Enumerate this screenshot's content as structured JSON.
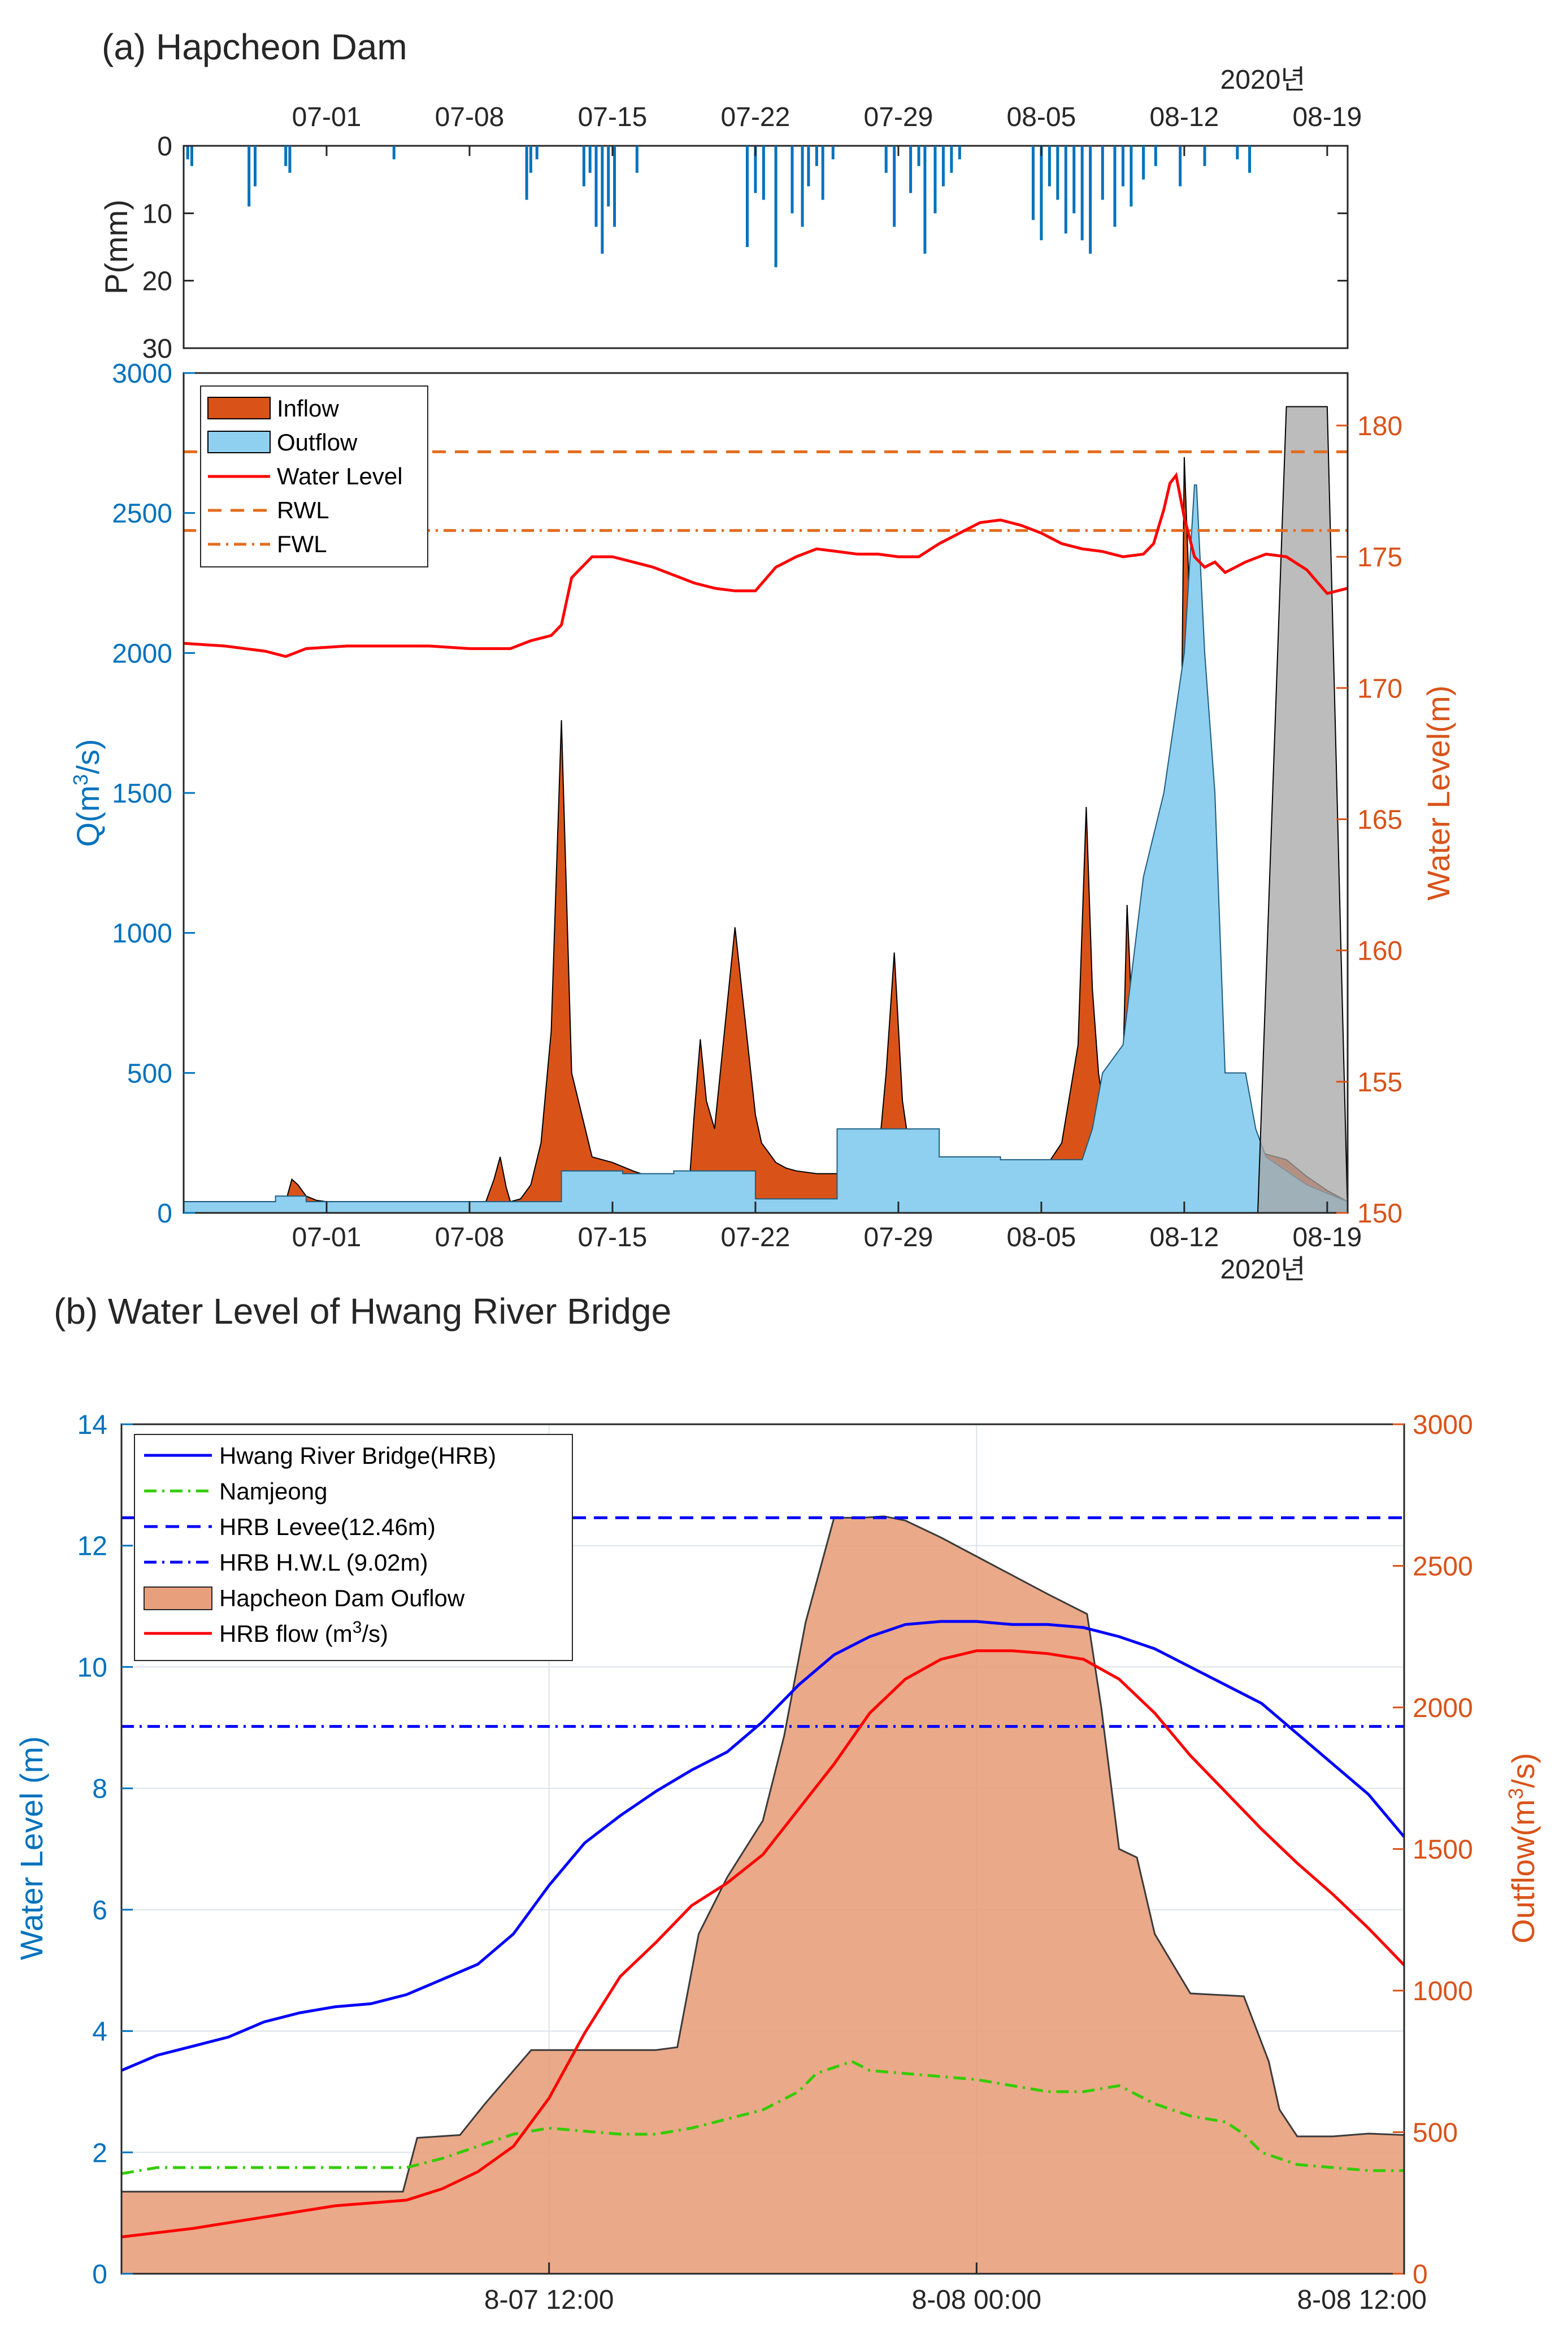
{
  "panel_a": {
    "title": "(a) Hapcheon Dam",
    "year_label_top": "2020년",
    "year_label_bottom": "2020년",
    "date_ticks": [
      "07-01",
      "07-08",
      "07-15",
      "07-22",
      "07-29",
      "08-05",
      "08-12",
      "08-19"
    ],
    "precip_ylabel": "P(mm)",
    "q_ylabel": "Q(m³/s)",
    "wl_ylabel": "Water Level(m)",
    "legend": [
      "Inflow",
      "Outflow",
      "Water Level",
      "RWL",
      "FWL"
    ],
    "colors": {
      "inflow": "#D95319",
      "outflow": "#8FD0F0",
      "water_level": "#FF0000",
      "rwl": "#E36C1E",
      "fwl": "#E36C1E",
      "precip": "#0072BD",
      "gray": "#A6A6A6"
    }
  },
  "panel_b": {
    "title": "(b) Water Level of Hwang River Bridge",
    "left_ylabel": "Water Level (m)",
    "right_ylabel": "Outflow(m³/s)",
    "legend": [
      "Hwang River Bridge(HRB)",
      "Namjeong",
      "HRB Levee(12.46m)",
      "HRB H.W.L (9.02m)",
      "Hapcheon Dam Ouflow",
      "HRB flow (m³/s)"
    ],
    "x_ticks": [
      "8-07 12:00",
      "8-08 00:00",
      "8-08 12:00"
    ],
    "colors": {
      "hrb": "#0000FF",
      "namjeong": "#33CC00",
      "levee": "#0000FF",
      "hwl": "#0000FF",
      "dam": "#E8A07C",
      "hrb_flow": "#FF0000"
    }
  },
  "chart_data": [
    {
      "type": "bar",
      "title": "(a) Hapcheon Dam",
      "ylabel": "P(mm)",
      "x_unit": "days since 2020-06-24",
      "ylim": [
        30,
        0
      ],
      "y_ticks": [
        0,
        10,
        20,
        30
      ],
      "x_ticks": [
        7,
        14,
        21,
        28,
        35,
        42,
        49,
        56
      ],
      "x_tick_labels": [
        "07-01",
        "07-08",
        "07-15",
        "07-22",
        "07-29",
        "08-05",
        "08-12",
        "08-19"
      ],
      "x": [
        0.2,
        0.4,
        3.2,
        3.5,
        5.0,
        5.2,
        10.3,
        16.8,
        17.0,
        17.3,
        19.6,
        19.9,
        20.2,
        20.5,
        20.8,
        21.1,
        22.2,
        27.6,
        28.0,
        28.4,
        29.0,
        29.8,
        30.3,
        30.6,
        31.0,
        31.3,
        31.8,
        34.4,
        34.8,
        35.6,
        36.0,
        36.3,
        36.8,
        37.2,
        37.6,
        38.0,
        41.6,
        42.0,
        42.4,
        42.8,
        43.2,
        43.6,
        44.0,
        44.4,
        45.0,
        45.6,
        46.0,
        46.4,
        47.0,
        47.6,
        48.8,
        50.0,
        51.6,
        52.2
      ],
      "values": [
        2,
        3,
        9,
        6,
        3,
        4,
        2,
        8,
        4,
        2,
        6,
        4,
        12,
        16,
        9,
        12,
        4,
        15,
        7,
        8,
        18,
        10,
        12,
        6,
        3,
        8,
        2,
        4,
        12,
        7,
        3,
        16,
        10,
        6,
        4,
        2,
        11,
        14,
        6,
        8,
        13,
        10,
        14,
        16,
        8,
        12,
        6,
        9,
        5,
        3,
        6,
        3,
        2,
        4
      ]
    },
    {
      "type": "area",
      "title": "(a) Hapcheon Dam",
      "xlabel": "2020년",
      "ylabel": "Q(m³/s)",
      "ylabel_right": "Water Level(m)",
      "x_unit": "days since 2020-06-24",
      "xlim": [
        0,
        57
      ],
      "ylim": [
        0,
        3000
      ],
      "ylim_right": [
        150,
        182
      ],
      "y_ticks": [
        0,
        500,
        1000,
        1500,
        2000,
        2500,
        3000
      ],
      "y_ticks_right": [
        150,
        155,
        160,
        165,
        170,
        175,
        180
      ],
      "x_ticks": [
        7,
        14,
        21,
        28,
        35,
        42,
        49,
        56
      ],
      "x_tick_labels": [
        "07-01",
        "07-08",
        "07-15",
        "07-22",
        "07-29",
        "08-05",
        "08-12",
        "08-19"
      ],
      "legend": [
        "Inflow",
        "Outflow",
        "Water Level",
        "RWL",
        "FWL"
      ],
      "series": [
        {
          "name": "Inflow",
          "axis": "left",
          "kind": "area",
          "x": [
            0,
            5,
            5.3,
            5.6,
            6.0,
            6.5,
            7.0,
            7.5,
            8.0,
            10.0,
            14.8,
            15.2,
            15.5,
            15.8,
            16.0,
            16.5,
            17.0,
            17.5,
            18.0,
            18.5,
            19.0,
            20.0,
            21.0,
            22.0,
            22.8,
            23.0,
            23.2,
            23.6,
            24.0,
            24.4,
            24.7,
            25.0,
            25.3,
            25.6,
            26.0,
            27.0,
            28.0,
            28.3,
            28.6,
            29.0,
            29.5,
            30.0,
            31.0,
            32.0,
            33.0,
            34.0,
            34.4,
            34.8,
            35.2,
            35.5,
            35.8,
            36.2,
            36.6,
            37.0,
            38.0,
            39.0,
            40.0,
            41.0,
            42.0,
            43.0,
            43.8,
            44.2,
            44.5,
            44.8,
            45.2,
            45.6,
            45.9,
            46.2,
            46.5,
            46.8,
            47.1,
            47.5,
            48.0,
            48.5,
            48.8,
            49.0,
            49.2,
            49.6,
            50.0,
            50.5,
            51.0,
            52.0,
            52.5,
            53.0,
            54.0,
            55.0,
            56.0,
            57.0
          ],
          "values": [
            40,
            40,
            120,
            100,
            60,
            45,
            40,
            40,
            40,
            40,
            40,
            120,
            200,
            90,
            40,
            50,
            100,
            250,
            650,
            1760,
            500,
            200,
            180,
            150,
            130,
            100,
            80,
            60,
            60,
            50,
            40,
            350,
            620,
            400,
            300,
            1020,
            350,
            250,
            220,
            180,
            160,
            150,
            140,
            140,
            140,
            180,
            500,
            930,
            400,
            250,
            180,
            150,
            140,
            140,
            130,
            120,
            120,
            120,
            140,
            250,
            600,
            1450,
            800,
            500,
            300,
            250,
            230,
            1100,
            600,
            400,
            250,
            230,
            250,
            400,
            1300,
            2700,
            2300,
            1000,
            500,
            700,
            400,
            250,
            230,
            210,
            190,
            130,
            80,
            40
          ]
        },
        {
          "name": "Outflow",
          "axis": "left",
          "kind": "area",
          "x": [
            0,
            4.5,
            4.5,
            6.0,
            6.0,
            8.5,
            8.5,
            18.5,
            18.5,
            21.5,
            21.5,
            24.0,
            24.0,
            28.0,
            28.0,
            32.0,
            32.0,
            37.0,
            37.0,
            40.0,
            40.0,
            44.0,
            44.5,
            45.0,
            46.0,
            46.5,
            47.0,
            48.0,
            49.0,
            49.5,
            49.6,
            50.0,
            50.5,
            51.0,
            51.5,
            52.0,
            52.5,
            53.0,
            54.0,
            55.0,
            57.0
          ],
          "values": [
            40,
            40,
            60,
            60,
            40,
            40,
            40,
            40,
            150,
            150,
            140,
            140,
            150,
            150,
            50,
            50,
            300,
            300,
            200,
            200,
            190,
            190,
            300,
            500,
            600,
            900,
            1200,
            1500,
            2000,
            2600,
            2600,
            2000,
            1500,
            500,
            500,
            500,
            300,
            200,
            150,
            100,
            40
          ]
        },
        {
          "name": "Water Level",
          "axis": "right",
          "kind": "line",
          "x": [
            0,
            2,
            4,
            5,
            6,
            8,
            10,
            12,
            14,
            16,
            17,
            18,
            18.5,
            19,
            20,
            21,
            22,
            23,
            24,
            25,
            26,
            27,
            28,
            29,
            30,
            31,
            32,
            33,
            34,
            35,
            36,
            37,
            38,
            39,
            40,
            41,
            42,
            43,
            44,
            45,
            46,
            47,
            47.5,
            48,
            48.3,
            48.6,
            49,
            49.5,
            50,
            50.5,
            51,
            52,
            53,
            54,
            55,
            56,
            57
          ],
          "values": [
            171.7,
            171.6,
            171.4,
            171.2,
            171.5,
            171.6,
            171.6,
            171.6,
            171.5,
            171.5,
            171.8,
            172.0,
            172.4,
            174.2,
            175.0,
            175.0,
            174.8,
            174.6,
            174.3,
            174.0,
            173.8,
            173.7,
            173.7,
            174.6,
            175.0,
            175.3,
            175.2,
            175.1,
            175.1,
            175.0,
            175.0,
            175.5,
            175.9,
            176.3,
            176.4,
            176.2,
            175.9,
            175.5,
            175.3,
            175.2,
            175.0,
            175.1,
            175.5,
            176.8,
            177.8,
            178.1,
            176.5,
            175.0,
            174.6,
            174.8,
            174.4,
            174.8,
            175.1,
            175.0,
            174.5,
            173.6,
            173.8
          ]
        },
        {
          "name": "RWL",
          "axis": "right",
          "kind": "hline",
          "values": [
            179.0
          ]
        },
        {
          "name": "FWL",
          "axis": "right",
          "kind": "hline",
          "values": [
            176.0
          ]
        },
        {
          "name": "Gray overlap",
          "axis": "left",
          "kind": "area",
          "x": [
            52.6,
            54.0,
            55.0,
            56.0,
            57.0
          ],
          "values": [
            0,
            2880,
            2880,
            2880,
            0
          ]
        }
      ]
    },
    {
      "type": "line",
      "title": "(b) Water Level of Hwang River Bridge",
      "ylabel": "Water Level (m)",
      "ylabel_right": "Outflow(m³/s)",
      "x_unit": "hours since 2020-08-07 00:00",
      "xlim": [
        0,
        36
      ],
      "ylim": [
        0,
        14
      ],
      "ylim_right": [
        0,
        3000
      ],
      "x_ticks": [
        12,
        24,
        36
      ],
      "x_tick_labels": [
        "8-07 12:00",
        "8-08 00:00",
        "8-08 12:00"
      ],
      "y_ticks": [
        0,
        2,
        4,
        6,
        8,
        10,
        12,
        14
      ],
      "y_ticks_right": [
        0,
        500,
        1000,
        1500,
        2000,
        2500,
        3000
      ],
      "legend": [
        "Hwang River Bridge(HRB)",
        "Namjeong",
        "HRB Levee(12.46m)",
        "HRB H.W.L (9.02m)",
        "Hapcheon Dam Ouflow",
        "HRB flow (m³/s)"
      ],
      "series": [
        {
          "name": "Hapcheon Dam Ouflow",
          "axis": "right",
          "kind": "area",
          "x": [
            0,
            7.9,
            8.3,
            9.5,
            10.2,
            11.5,
            12.4,
            15.0,
            15.6,
            16.2,
            17.0,
            18.0,
            18.6,
            19.2,
            20.0,
            20.8,
            21.4,
            22.0,
            23.0,
            24.5,
            26.0,
            27.1,
            27.5,
            28.0,
            28.5,
            29.0,
            30.0,
            31.5,
            32.2,
            32.5,
            33.0,
            34.0,
            35.0,
            36.0
          ],
          "values": [
            290,
            290,
            480,
            490,
            600,
            790,
            790,
            790,
            800,
            1200,
            1400,
            1600,
            1900,
            2300,
            2670,
            2670,
            2675,
            2660,
            2600,
            2500,
            2400,
            2330,
            2000,
            1500,
            1470,
            1200,
            990,
            980,
            750,
            580,
            485,
            485,
            495,
            490
          ]
        },
        {
          "name": "Hwang River Bridge(HRB)",
          "axis": "left",
          "kind": "line",
          "x": [
            0,
            1,
            2,
            3,
            4,
            5,
            6,
            7,
            8,
            9,
            10,
            11,
            12,
            13,
            14,
            15,
            16,
            17,
            18,
            19,
            20,
            21,
            22,
            23,
            24,
            25,
            26,
            27,
            28,
            29,
            30,
            31,
            32,
            33,
            34,
            35,
            36
          ],
          "values": [
            3.35,
            3.6,
            3.75,
            3.9,
            4.15,
            4.3,
            4.4,
            4.45,
            4.6,
            4.85,
            5.1,
            5.6,
            6.4,
            7.1,
            7.55,
            7.95,
            8.3,
            8.6,
            9.1,
            9.7,
            10.2,
            10.5,
            10.7,
            10.75,
            10.75,
            10.7,
            10.7,
            10.65,
            10.5,
            10.3,
            10.0,
            9.7,
            9.4,
            8.9,
            8.4,
            7.9,
            7.2
          ]
        },
        {
          "name": "Namjeong",
          "axis": "left",
          "kind": "line",
          "x": [
            0,
            1,
            2,
            4,
            6,
            8,
            9,
            10,
            11,
            12,
            13,
            14,
            15,
            16,
            17,
            18,
            19,
            19.5,
            20,
            20.5,
            21,
            22,
            23,
            24,
            25,
            26,
            27,
            28,
            29,
            30,
            31,
            31.5,
            32,
            33,
            34,
            35,
            36
          ],
          "values": [
            1.65,
            1.75,
            1.75,
            1.75,
            1.75,
            1.75,
            1.9,
            2.1,
            2.3,
            2.4,
            2.35,
            2.3,
            2.3,
            2.4,
            2.55,
            2.7,
            3.0,
            3.3,
            3.4,
            3.5,
            3.35,
            3.3,
            3.25,
            3.2,
            3.1,
            3.0,
            3.0,
            3.1,
            2.8,
            2.6,
            2.5,
            2.3,
            2.0,
            1.8,
            1.75,
            1.7,
            1.7
          ]
        },
        {
          "name": "HRB Levee(12.46m)",
          "axis": "left",
          "kind": "hline",
          "values": [
            12.46
          ]
        },
        {
          "name": "HRB H.W.L (9.02m)",
          "axis": "left",
          "kind": "hline",
          "values": [
            9.02
          ]
        },
        {
          "name": "HRB flow (m³/s)",
          "axis": "right",
          "kind": "line",
          "x": [
            0,
            2,
            4,
            6,
            8,
            9,
            10,
            11,
            12,
            13,
            14,
            15,
            16,
            17,
            18,
            19,
            20,
            21,
            22,
            23,
            24,
            25,
            26,
            27,
            28,
            29,
            30,
            31,
            32,
            33,
            34,
            35,
            36
          ],
          "values": [
            130,
            160,
            200,
            240,
            260,
            300,
            360,
            450,
            620,
            850,
            1050,
            1170,
            1300,
            1380,
            1480,
            1640,
            1800,
            1980,
            2100,
            2170,
            2200,
            2200,
            2190,
            2170,
            2100,
            1980,
            1830,
            1700,
            1570,
            1450,
            1340,
            1220,
            1090
          ]
        }
      ]
    }
  ]
}
